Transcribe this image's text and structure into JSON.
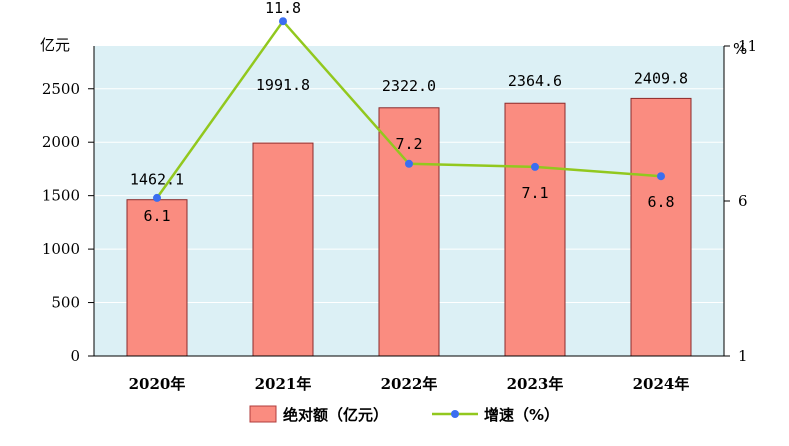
{
  "chart_data": {
    "type": "bar+line",
    "categories": [
      "2020年",
      "2021年",
      "2022年",
      "2023年",
      "2024年"
    ],
    "series": [
      {
        "name": "绝对额（亿元）",
        "type": "bar",
        "axis": "left",
        "values": [
          1462.1,
          1991.8,
          2322.0,
          2364.6,
          2409.8
        ],
        "labels": [
          "1462.1",
          "1991.8",
          "2322.0",
          "2364.6",
          "2409.8"
        ],
        "color": "#fa8c80"
      },
      {
        "name": "增速（%）",
        "type": "line",
        "axis": "right",
        "values": [
          6.1,
          11.8,
          7.2,
          7.1,
          6.8
        ],
        "labels": [
          "6.1",
          "11.8",
          "7.2",
          "7.1",
          "6.8"
        ],
        "color": "#92c81e",
        "marker_color": "#3b6ef0"
      }
    ],
    "left_axis": {
      "unit": "亿元",
      "ylim": [
        0,
        2900
      ],
      "ticks": [
        "0",
        "500",
        "1000",
        "1500",
        "2000",
        "2500"
      ]
    },
    "right_axis": {
      "unit": "%",
      "ylim": [
        1,
        11
      ],
      "ticks": [
        "1",
        "6",
        "11"
      ]
    },
    "plot_background": "#dcf0f5",
    "legend_position": "bottom-center"
  }
}
